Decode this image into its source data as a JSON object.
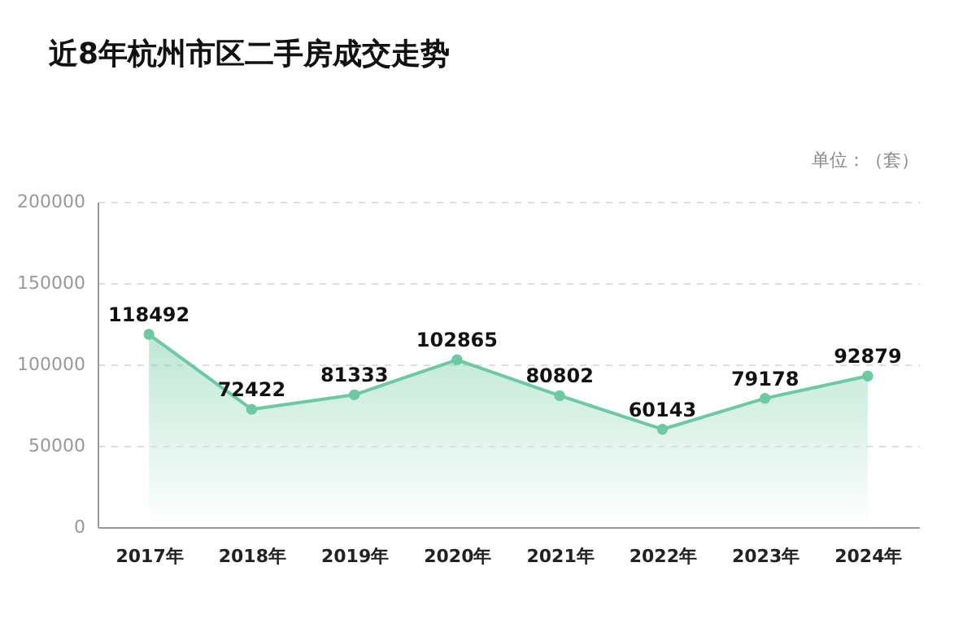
{
  "chart_data": {
    "type": "area",
    "title": "近8年杭州市区二手房成交走势",
    "annotations": [
      "单位：（套）"
    ],
    "categories": [
      "2017年",
      "2018年",
      "2019年",
      "2020年",
      "2021年",
      "2022年",
      "2023年",
      "2024年"
    ],
    "series": [
      {
        "color": "#6cc9a1",
        "values": [
          118492,
          72422,
          81333,
          102865,
          80802,
          60143,
          79178,
          92879
        ]
      }
    ],
    "ylim": [
      0,
      200000
    ],
    "yticks": [
      0,
      50000,
      100000,
      150000,
      200000
    ],
    "grid": "y",
    "marker": "circle",
    "line_style": "solid",
    "data_labels": true
  }
}
